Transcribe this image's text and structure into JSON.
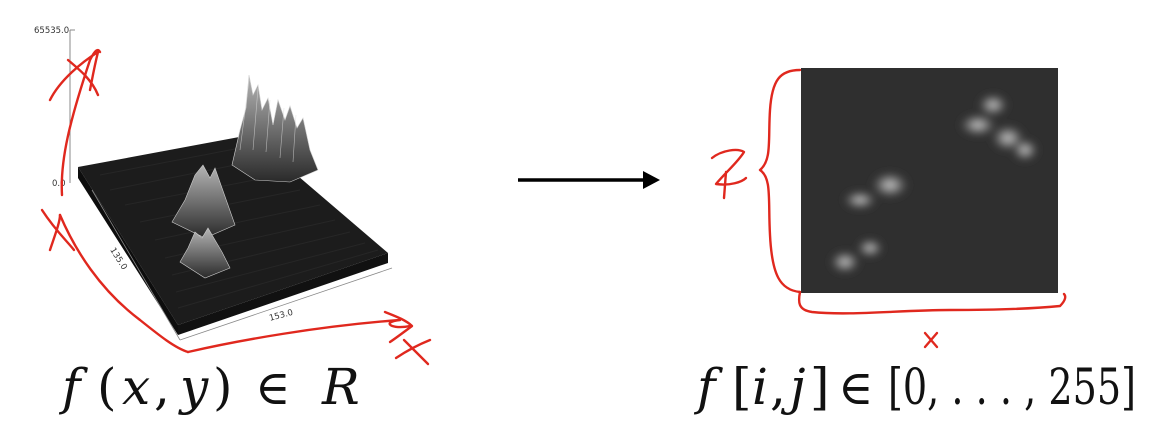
{
  "left_panel": {
    "z_max_label": "65535.0",
    "z_min_label": "0.0",
    "y_axis_label": "135.0",
    "x_axis_label": "153.0",
    "formula": {
      "f": "f",
      "open": "(",
      "x": "x",
      "comma": ",",
      "y": "y",
      "close": ")",
      "in": "∈",
      "set": "R"
    }
  },
  "right_panel": {
    "formula": {
      "f": "f",
      "open": "[",
      "i": "i",
      "comma": ",",
      "j": "j",
      "close": "]",
      "in": "∈",
      "range": "[0, . . . , 255]"
    }
  },
  "colors": {
    "annotation": "#e0281e",
    "surface": "#1a1a1a",
    "image_bg": "#2f2f2f"
  }
}
